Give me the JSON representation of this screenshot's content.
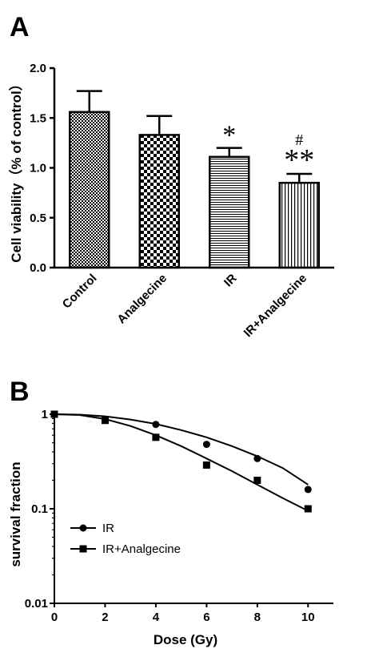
{
  "chart_data": [
    {
      "panel": "A",
      "type": "bar",
      "categories": [
        "Control",
        "Analgecine",
        "IR",
        "IR+Analgecine"
      ],
      "values": [
        1.56,
        1.33,
        1.11,
        0.85
      ],
      "errors": [
        0.21,
        0.19,
        0.09,
        0.09
      ],
      "annotations": [
        "",
        "",
        "*",
        "**"
      ],
      "annotations_top": [
        "",
        "",
        "",
        "#"
      ],
      "ylabel": "Cell viability（% of control）",
      "ylim": [
        0,
        2.0
      ],
      "yticks": [
        "0.0",
        "0.5",
        "1.0",
        "1.5",
        "2.0"
      ],
      "fill_patterns": [
        "fine-check",
        "coarse-check",
        "horizontal-lines",
        "vertical-lines"
      ]
    },
    {
      "panel": "B",
      "type": "scatter",
      "xlabel": "Dose (Gy)",
      "ylabel": "survival fraction",
      "yscale": "log",
      "xlim": [
        0,
        11
      ],
      "ylim": [
        0.01,
        1
      ],
      "xticks": [
        "0",
        "2",
        "4",
        "6",
        "8",
        "10"
      ],
      "yticks": [
        "0.01",
        "0.1",
        "1"
      ],
      "legend_position": "lower-left",
      "series": [
        {
          "name": "IR",
          "marker": "circle",
          "x": [
            0,
            2,
            4,
            6,
            8,
            10
          ],
          "y": [
            1.0,
            0.87,
            0.78,
            0.48,
            0.34,
            0.16
          ],
          "fit": [
            [
              0,
              1.0
            ],
            [
              1,
              0.99
            ],
            [
              2,
              0.95
            ],
            [
              3,
              0.88
            ],
            [
              4,
              0.79
            ],
            [
              5,
              0.68
            ],
            [
              6,
              0.57
            ],
            [
              7,
              0.46
            ],
            [
              8,
              0.36
            ],
            [
              9,
              0.27
            ],
            [
              10,
              0.18
            ]
          ]
        },
        {
          "name": "IR+Analgecine",
          "marker": "square",
          "x": [
            0,
            2,
            4,
            6,
            8,
            10
          ],
          "y": [
            1.0,
            0.86,
            0.57,
            0.29,
            0.2,
            0.1
          ],
          "fit": [
            [
              0,
              1.0
            ],
            [
              1,
              0.98
            ],
            [
              2,
              0.89
            ],
            [
              3,
              0.75
            ],
            [
              4,
              0.6
            ],
            [
              5,
              0.46
            ],
            [
              6,
              0.34
            ],
            [
              7,
              0.25
            ],
            [
              8,
              0.18
            ],
            [
              9,
              0.13
            ],
            [
              10,
              0.095
            ]
          ]
        }
      ]
    }
  ],
  "panel_labels": [
    "A",
    "B"
  ]
}
